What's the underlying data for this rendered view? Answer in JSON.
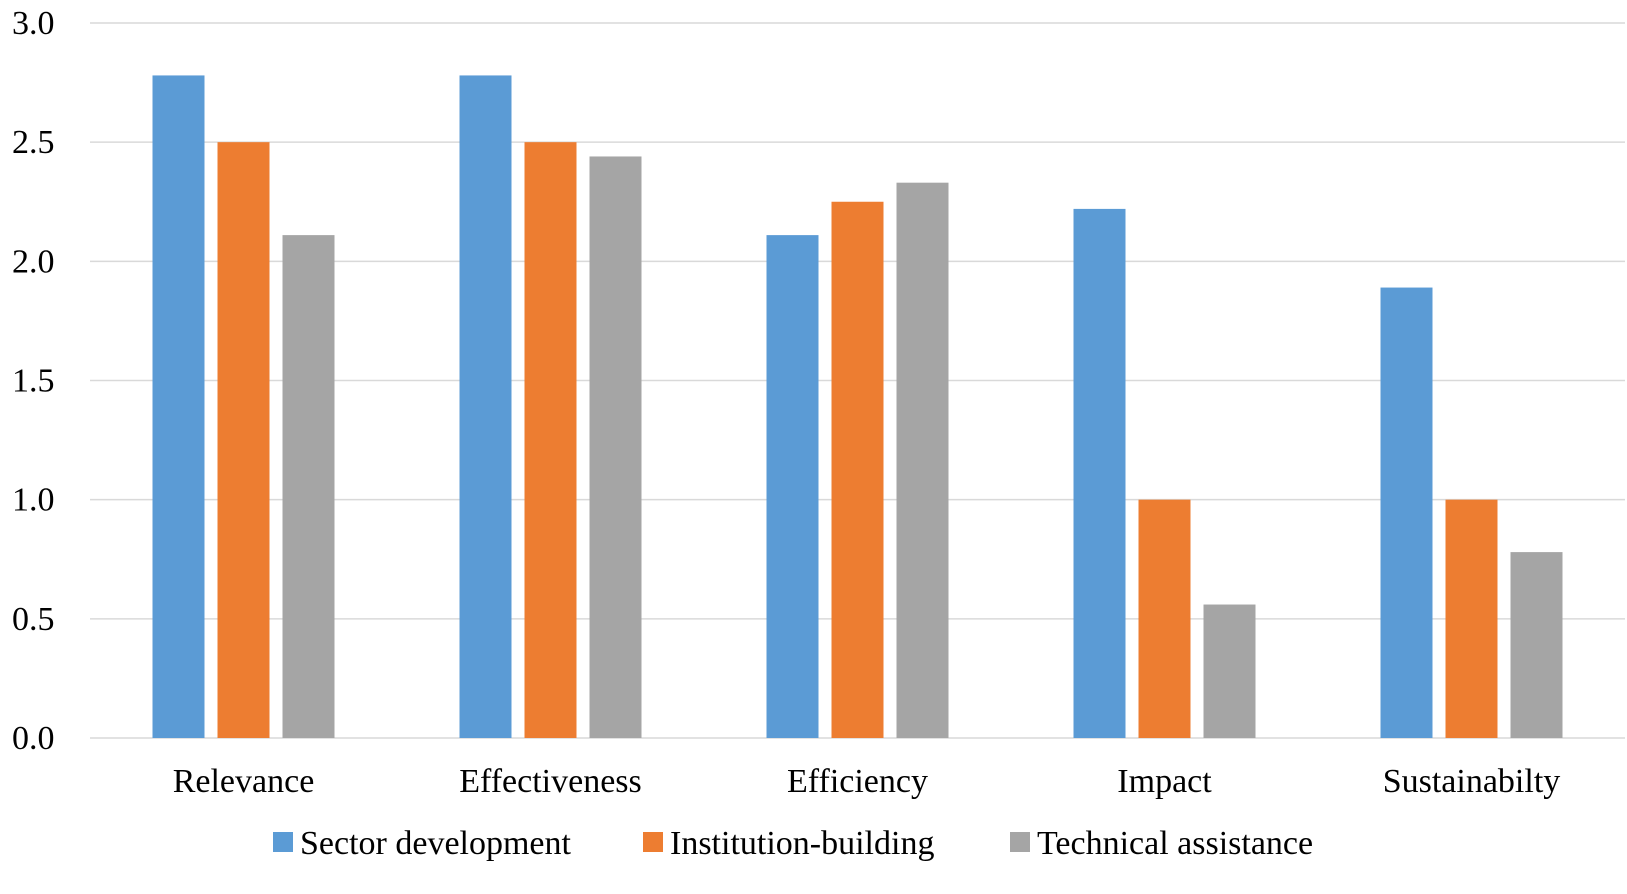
{
  "chart_data": {
    "type": "bar",
    "categories": [
      "Relevance",
      "Effectiveness",
      "Efficiency",
      "Impact",
      "Sustainabilty"
    ],
    "series": [
      {
        "name": "Sector development",
        "color": "#5b9bd5",
        "values": [
          2.78,
          2.78,
          2.11,
          2.22,
          1.89
        ]
      },
      {
        "name": "Institution-building",
        "color": "#ed7d31",
        "values": [
          2.5,
          2.5,
          2.25,
          1.0,
          1.0
        ]
      },
      {
        "name": "Technical assistance",
        "color": "#a5a5a5",
        "values": [
          2.11,
          2.44,
          2.33,
          0.56,
          0.78
        ]
      }
    ],
    "y_ticks": [
      "0.0",
      "0.5",
      "1.0",
      "1.5",
      "2.0",
      "2.5",
      "3.0"
    ],
    "ylim": [
      0,
      3
    ],
    "grid": true,
    "legend_position": "bottom",
    "title": "",
    "xlabel": "",
    "ylabel": ""
  }
}
